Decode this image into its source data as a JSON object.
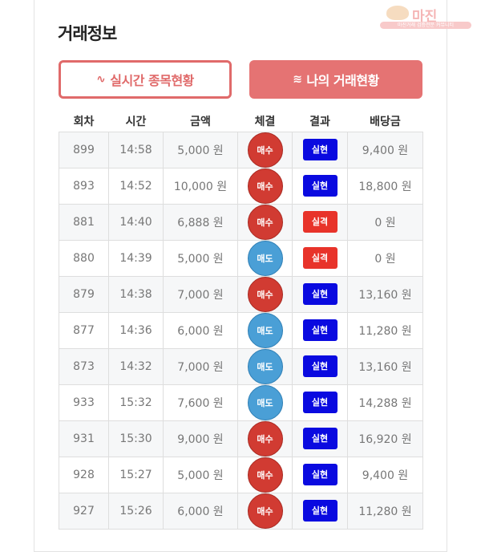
{
  "logo": {
    "text": "마진",
    "sub": "마진거래 검증전문 커뮤니티"
  },
  "title": "거래정보",
  "buttons": {
    "realtime": "실시간 종목현황",
    "mine": "나의 거래현황",
    "realtime_icon": "pulse-icon",
    "mine_icon": "list-icon"
  },
  "colors": {
    "buy": "#d13b32",
    "sell": "#4a9fd6",
    "win": "#0a0ae0",
    "lose": "#e8332a",
    "accent": "#e57373"
  },
  "table": {
    "headers": [
      "회차",
      "시간",
      "금액",
      "체결",
      "결과",
      "배당금"
    ],
    "rows": [
      {
        "round": "899",
        "time": "14:58",
        "amount": "5,000 원",
        "trade": "매수",
        "result": "실현",
        "payout": "9,400 원"
      },
      {
        "round": "893",
        "time": "14:52",
        "amount": "10,000 원",
        "trade": "매수",
        "result": "실현",
        "payout": "18,800 원"
      },
      {
        "round": "881",
        "time": "14:40",
        "amount": "6,888 원",
        "trade": "매수",
        "result": "실격",
        "payout": "0 원"
      },
      {
        "round": "880",
        "time": "14:39",
        "amount": "5,000 원",
        "trade": "매도",
        "result": "실격",
        "payout": "0 원"
      },
      {
        "round": "879",
        "time": "14:38",
        "amount": "7,000 원",
        "trade": "매수",
        "result": "실현",
        "payout": "13,160 원"
      },
      {
        "round": "877",
        "time": "14:36",
        "amount": "6,000 원",
        "trade": "매도",
        "result": "실현",
        "payout": "11,280 원"
      },
      {
        "round": "873",
        "time": "14:32",
        "amount": "7,000 원",
        "trade": "매도",
        "result": "실현",
        "payout": "13,160 원"
      },
      {
        "round": "933",
        "time": "15:32",
        "amount": "7,600 원",
        "trade": "매도",
        "result": "실현",
        "payout": "14,288 원"
      },
      {
        "round": "931",
        "time": "15:30",
        "amount": "9,000 원",
        "trade": "매수",
        "result": "실현",
        "payout": "16,920 원"
      },
      {
        "round": "928",
        "time": "15:27",
        "amount": "5,000 원",
        "trade": "매수",
        "result": "실현",
        "payout": "9,400 원"
      },
      {
        "round": "927",
        "time": "15:26",
        "amount": "6,000 원",
        "trade": "매수",
        "result": "실현",
        "payout": "11,280 원"
      }
    ]
  }
}
